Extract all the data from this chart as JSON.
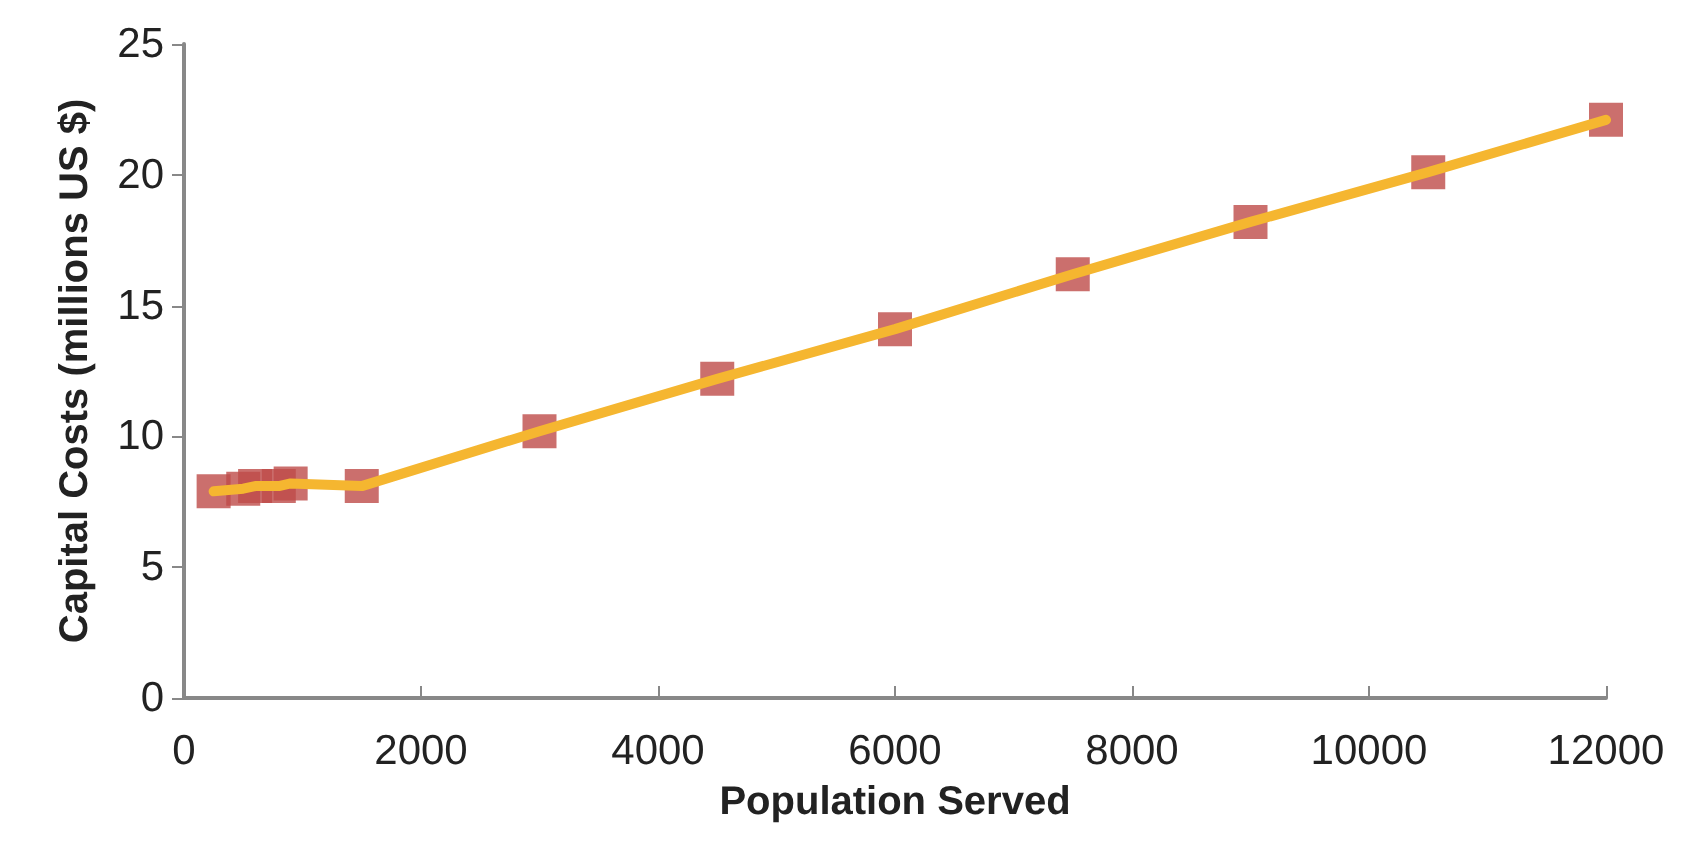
{
  "chart_data": {
    "type": "line",
    "xlabel": "Population Served",
    "ylabel": "Capital Costs (millions US $)",
    "x": [
      250,
      500,
      600,
      800,
      900,
      1500,
      3000,
      4500,
      6000,
      7500,
      9000,
      10500,
      12000
    ],
    "series": [
      {
        "color": "#f5b630",
        "marker": "none",
        "values": [
          7.9,
          8.0,
          8.1,
          8.1,
          8.2,
          8.1,
          10.2,
          12.2,
          14.1,
          16.2,
          18.2,
          20.1,
          22.1
        ]
      },
      {
        "type": "scatter",
        "color": "#be4b48",
        "marker": "square",
        "values": [
          7.9,
          8.0,
          8.1,
          8.1,
          8.2,
          8.1,
          10.2,
          12.2,
          14.1,
          16.2,
          18.2,
          20.1,
          22.1
        ]
      }
    ],
    "xlim": [
      0,
      12000
    ],
    "xticks": [
      0,
      2000,
      4000,
      6000,
      8000,
      10000,
      12000
    ],
    "ylim": [
      0,
      25
    ],
    "yticks": [
      0,
      5,
      10,
      15,
      20,
      25
    ],
    "grid": false
  }
}
